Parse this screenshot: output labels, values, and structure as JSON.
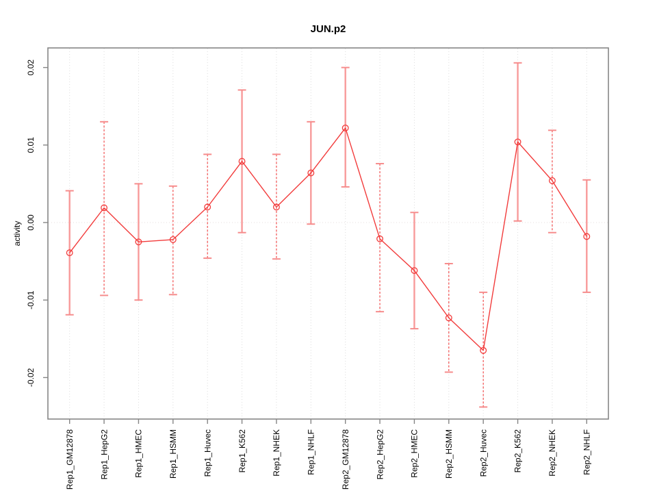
{
  "figure": {
    "title": "JUN.p2",
    "y_axis_label": "activity"
  },
  "chart_data": {
    "type": "line",
    "title": "JUN.p2",
    "xlabel": "",
    "ylabel": "activity",
    "ylim": [
      -0.0254,
      0.0225
    ],
    "grid": "dotted vertical gridline at each category; dotted horizontal line at y=0",
    "legend": "none",
    "marker": "open-circle",
    "error_bars": true,
    "yticks": [
      0.02,
      0.01,
      0.0,
      -0.01,
      -0.02
    ],
    "ytick_labels": [
      "0.02",
      "0.01",
      "0.00",
      "-0.01",
      "-0.02"
    ],
    "categories": [
      "Rep1_GM12878",
      "Rep1_HepG2",
      "Rep1_HMEC",
      "Rep1_HSMM",
      "Rep1_Huvec",
      "Rep1_K562",
      "Rep1_NHEK",
      "Rep1_NHLF",
      "Rep2_GM12878",
      "Rep2_HepG2",
      "Rep2_HMEC",
      "Rep2_HSMM",
      "Rep2_Huvec",
      "Rep2_K562",
      "Rep2_NHEK",
      "Rep2_NHLF"
    ],
    "series": [
      {
        "name": "activity",
        "values": [
          -0.0039,
          0.0019,
          -0.0025,
          -0.0022,
          0.002,
          0.0079,
          0.002,
          0.0064,
          0.0122,
          -0.0021,
          -0.0062,
          -0.0123,
          -0.0165,
          0.0104,
          0.0054,
          -0.0018
        ],
        "error_low": [
          -0.0119,
          -0.0094,
          -0.01,
          -0.0093,
          -0.0046,
          -0.0013,
          -0.0047,
          -0.0002,
          0.0046,
          -0.0115,
          -0.0137,
          -0.0193,
          -0.0238,
          0.0002,
          -0.0013,
          -0.009
        ],
        "error_high": [
          0.0041,
          0.013,
          0.005,
          0.0047,
          0.0088,
          0.0171,
          0.0088,
          0.013,
          0.02,
          0.0076,
          0.0013,
          -0.0053,
          -0.009,
          0.0206,
          0.0119,
          0.0055
        ],
        "bar_styles": [
          "solid",
          "dashed",
          "solid",
          "dashed",
          "dashed",
          "solid",
          "dashed",
          "solid",
          "solid",
          "dashed",
          "solid",
          "dashed",
          "dashed",
          "solid",
          "dashed",
          "solid"
        ]
      }
    ],
    "colors": {
      "line": "#f23b3b",
      "marker_stroke": "#f23b3b",
      "bar_solid": "#f89a9a",
      "bar_dashed": "#f24d4d",
      "cap": "#f68c8c",
      "grid": "#dcdcdc",
      "zero_line": "#e6dcdc",
      "frame": "#858585",
      "text": "#000000"
    }
  }
}
